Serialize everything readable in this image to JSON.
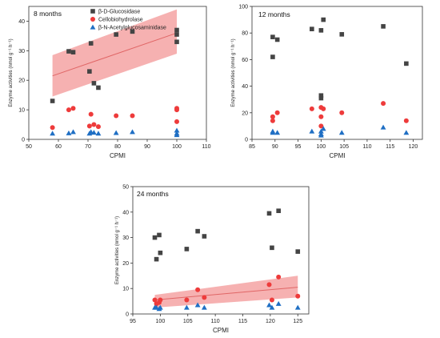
{
  "legend": [
    "β-D-Glucosidase",
    "Cellobiohydrolase",
    "β-N-Acetylglucosaminidase"
  ],
  "colors": {
    "bg": "#444444",
    "cbh": "#ee3b3b",
    "nag": "#1f6fc4",
    "band": "#f4a3a3",
    "fit": "#e06666"
  },
  "marker_shapes": [
    "square",
    "circle",
    "triangle"
  ],
  "chart_data": [
    {
      "type": "scatter",
      "title": "8 months",
      "xlabel": "CPMI",
      "ylabel": "Enzyme activities (nmol g⁻¹ h⁻¹)",
      "xlim": [
        50,
        110
      ],
      "ylim": [
        0,
        45
      ],
      "xticks": [
        50,
        60,
        70,
        80,
        90,
        100,
        110
      ],
      "yticks": [
        0,
        10,
        20,
        30,
        40
      ],
      "grid": false,
      "legend_position": "top-left",
      "series": [
        {
          "name": "β-D-Glucosidase",
          "x": [
            58,
            63.5,
            65,
            70.5,
            71,
            72,
            73.5,
            79.5,
            85,
            100,
            100,
            100
          ],
          "y": [
            13,
            29.8,
            29.5,
            23,
            32.5,
            19,
            17.5,
            35.5,
            36.5,
            37,
            35.5,
            33
          ]
        },
        {
          "name": "Cellobiohydrolase",
          "x": [
            58,
            63.5,
            65,
            70.5,
            71,
            72,
            73.5,
            79.5,
            85,
            100,
            100,
            100
          ],
          "y": [
            4,
            10,
            10.5,
            4.5,
            8.5,
            5,
            4.3,
            8,
            8,
            10.5,
            10,
            6
          ]
        },
        {
          "name": "β-N-Acetylglucosaminidase",
          "x": [
            58,
            63.5,
            65,
            70.5,
            71,
            72,
            73.5,
            79.5,
            85,
            100,
            100,
            100
          ],
          "y": [
            2,
            2.1,
            2.5,
            2,
            2.5,
            2.3,
            2,
            2.2,
            2.5,
            3,
            2,
            1.5
          ]
        }
      ],
      "fit": {
        "x": [
          58,
          100
        ],
        "y": [
          21.5,
          36
        ],
        "band_lower": [
          14.5,
          29
        ],
        "band_upper": [
          28.5,
          44
        ]
      }
    },
    {
      "type": "scatter",
      "title": "12 months",
      "xlabel": "CPMI",
      "ylabel": "Enzyme activities (nmol g⁻¹ h⁻¹)",
      "xlim": [
        85,
        122
      ],
      "ylim": [
        0,
        100
      ],
      "xticks": [
        85,
        90,
        95,
        100,
        105,
        110,
        115,
        120
      ],
      "yticks": [
        0,
        20,
        40,
        60,
        80,
        100
      ],
      "grid": false,
      "series": [
        {
          "name": "β-D-Glucosidase",
          "x": [
            89.5,
            89.5,
            90.5,
            98,
            100,
            100,
            100,
            100.5,
            104.5,
            113.5,
            118.5
          ],
          "y": [
            77,
            62,
            75,
            83,
            82,
            33,
            31,
            90,
            79,
            85,
            57
          ]
        },
        {
          "name": "Cellobiohydrolase",
          "x": [
            89.5,
            89.5,
            90.5,
            98,
            100,
            100,
            100,
            100.5,
            104.5,
            113.5,
            118.5
          ],
          "y": [
            17,
            14,
            20,
            23,
            24,
            10,
            17,
            23,
            20,
            27,
            14
          ]
        },
        {
          "name": "β-N-Acetylglucosaminidase",
          "x": [
            89.5,
            89.5,
            90.5,
            98,
            100,
            100,
            100,
            100.5,
            104.5,
            113.5,
            118.5
          ],
          "y": [
            6,
            5,
            5,
            6,
            4,
            3,
            6,
            8,
            5,
            9,
            5
          ]
        }
      ]
    },
    {
      "type": "scatter",
      "title": "24 months",
      "xlabel": "CPMI",
      "ylabel": "Enzyme activities (nmol g⁻¹ h⁻¹)",
      "xlim": [
        95,
        127
      ],
      "ylim": [
        0,
        50
      ],
      "xticks": [
        95,
        100,
        105,
        110,
        115,
        120,
        125
      ],
      "yticks": [
        0,
        10,
        20,
        30,
        40,
        50
      ],
      "grid": false,
      "series": [
        {
          "name": "β-D-Glucosidase",
          "x": [
            99,
            99.3,
            99.8,
            100,
            104.8,
            106.8,
            108,
            119.8,
            120.3,
            121.5,
            125
          ],
          "y": [
            30,
            21.5,
            31,
            24,
            25.5,
            32.5,
            30.5,
            39.5,
            26,
            40.5,
            24.5
          ]
        },
        {
          "name": "Cellobiohydrolase",
          "x": [
            99,
            99.3,
            99.8,
            100,
            104.8,
            106.8,
            108,
            119.8,
            120.3,
            121.5,
            125
          ],
          "y": [
            5.5,
            4,
            4.5,
            5.5,
            5.5,
            9.5,
            6.5,
            11.5,
            5.5,
            14.5,
            7
          ]
        },
        {
          "name": "β-N-Acetylglucosaminidase",
          "x": [
            99,
            99.3,
            99.8,
            100,
            104.8,
            106.8,
            108,
            119.8,
            120.3,
            121.5,
            125
          ],
          "y": [
            2.5,
            2.5,
            2,
            2.5,
            2.5,
            3.5,
            2.5,
            3.5,
            2.5,
            4,
            2.5
          ]
        }
      ],
      "fit": {
        "x": [
          99,
          125
        ],
        "y": [
          5.5,
          10.5
        ],
        "band_lower": [
          2.5,
          6.5
        ],
        "band_upper": [
          7.5,
          15
        ]
      }
    }
  ]
}
